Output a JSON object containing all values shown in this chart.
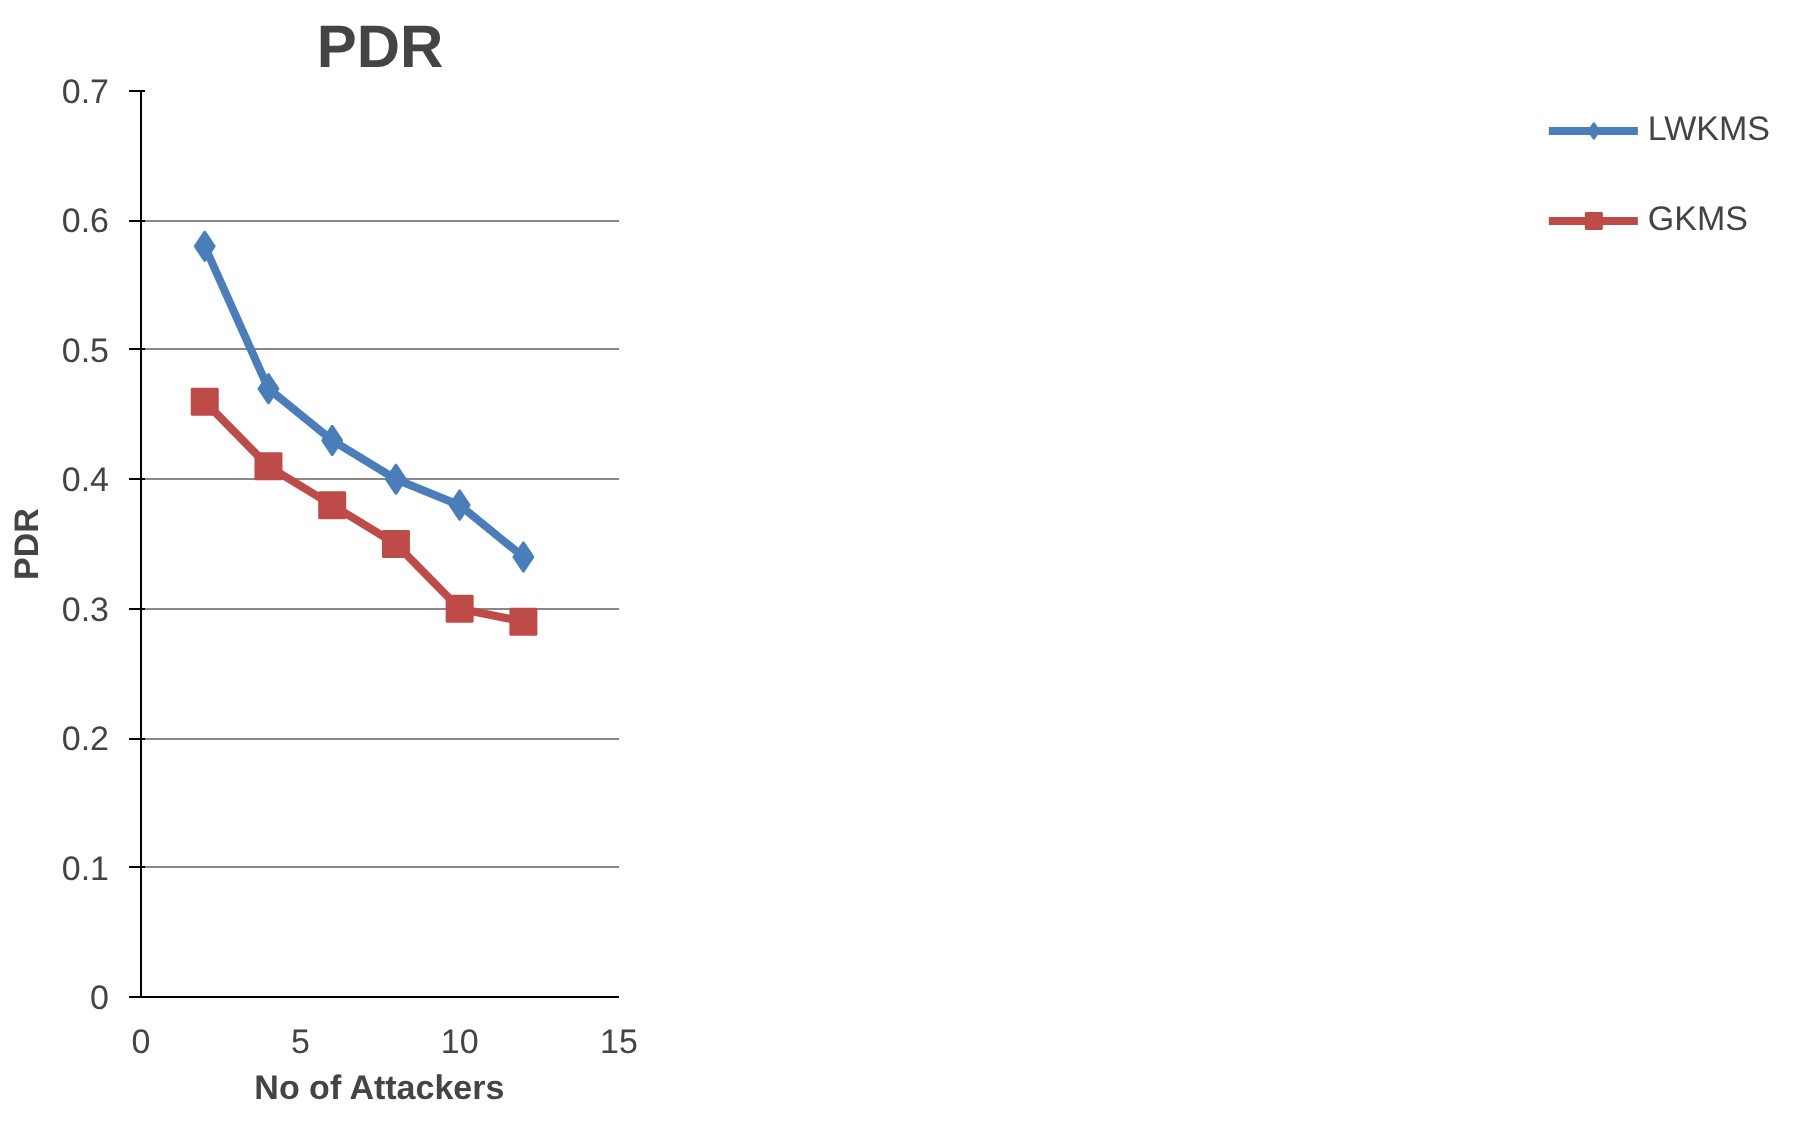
{
  "chart_data": {
    "type": "line",
    "title": "PDR",
    "xlabel": "No of Attackers",
    "ylabel": "PDR",
    "x": [
      2,
      4,
      6,
      8,
      10,
      12
    ],
    "series": [
      {
        "name": "LWKMS",
        "color": "#4a7ebb",
        "marker": "diamond",
        "values": [
          0.58,
          0.47,
          0.43,
          0.4,
          0.38,
          0.34
        ]
      },
      {
        "name": "GKMS",
        "color": "#be4b48",
        "marker": "square",
        "values": [
          0.46,
          0.41,
          0.38,
          0.35,
          0.3,
          0.29
        ]
      }
    ],
    "xlim": [
      0,
      15
    ],
    "xticks": [
      0,
      5,
      10,
      15
    ],
    "ylim": [
      0,
      0.7
    ],
    "yticks": [
      0,
      0.1,
      0.2,
      0.3,
      0.4,
      0.5,
      0.6,
      0.7
    ],
    "grid": "y",
    "legend": "right",
    "line_style": "solid"
  }
}
